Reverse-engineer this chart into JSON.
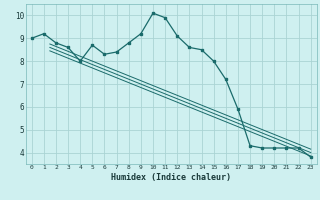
{
  "xlabel": "Humidex (Indice chaleur)",
  "background_color": "#cff0f0",
  "grid_color": "#aad4d4",
  "line_color": "#1a6b6b",
  "xlim": [
    -0.5,
    23.5
  ],
  "ylim": [
    3.5,
    10.5
  ],
  "xticks": [
    0,
    1,
    2,
    3,
    4,
    5,
    6,
    7,
    8,
    9,
    10,
    11,
    12,
    13,
    14,
    15,
    16,
    17,
    18,
    19,
    20,
    21,
    22,
    23
  ],
  "yticks": [
    4,
    5,
    6,
    7,
    8,
    9,
    10
  ],
  "main_series_x": [
    0,
    1,
    2,
    3,
    4,
    5,
    6,
    7,
    8,
    9,
    10,
    11,
    12,
    13,
    14,
    15,
    16,
    17,
    18,
    19,
    20,
    21,
    22,
    23
  ],
  "main_series_y": [
    9.0,
    9.2,
    8.8,
    8.6,
    8.0,
    8.7,
    8.3,
    8.4,
    8.8,
    9.2,
    10.1,
    9.9,
    9.1,
    8.6,
    8.5,
    8.0,
    7.2,
    5.9,
    4.3,
    4.2,
    4.2,
    4.2,
    4.2,
    3.8
  ],
  "reg_lines": [
    {
      "x": [
        1.5,
        23
      ],
      "y": [
        8.75,
        4.15
      ]
    },
    {
      "x": [
        1.5,
        23
      ],
      "y": [
        8.6,
        4.0
      ]
    },
    {
      "x": [
        1.5,
        23
      ],
      "y": [
        8.45,
        3.85
      ]
    }
  ]
}
